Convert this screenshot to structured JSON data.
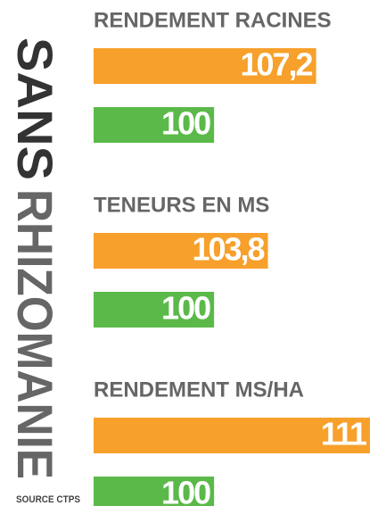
{
  "side_title": {
    "dark": "SANS",
    "light": "RHIZOMANIE"
  },
  "source": "SOURCE CTPS",
  "chart_data": {
    "type": "bar",
    "orientation": "horizontal",
    "categories": [
      "RENDEMENT RACINES",
      "TENEURS EN MS",
      "RENDEMENT MS/HA"
    ],
    "xlim": [
      91.5,
      111
    ],
    "series": [
      {
        "color": "#f7a02b",
        "values": [
          107.2,
          103.8,
          111
        ],
        "value_labels": [
          "107,2",
          "103,8",
          "111"
        ]
      },
      {
        "color": "#5bb94a",
        "values": [
          100,
          100,
          100
        ],
        "value_labels": [
          "100",
          "100",
          "100"
        ]
      }
    ]
  }
}
